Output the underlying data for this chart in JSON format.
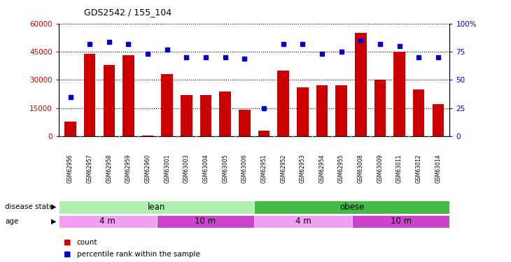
{
  "title": "GDS2542 / 155_104",
  "samples": [
    "GSM62956",
    "GSM62957",
    "GSM62958",
    "GSM62959",
    "GSM62960",
    "GSM63001",
    "GSM63003",
    "GSM63004",
    "GSM63005",
    "GSM63006",
    "GSM62951",
    "GSM62952",
    "GSM62953",
    "GSM62954",
    "GSM62955",
    "GSM63008",
    "GSM63009",
    "GSM63011",
    "GSM63012",
    "GSM63014"
  ],
  "counts": [
    8000,
    44000,
    38000,
    43000,
    500,
    33000,
    22000,
    22000,
    24000,
    14000,
    3000,
    35000,
    26000,
    27000,
    27000,
    55000,
    30000,
    45000,
    25000,
    17000
  ],
  "percentile": [
    35,
    82,
    84,
    82,
    73,
    77,
    70,
    70,
    70,
    69,
    25,
    82,
    82,
    73,
    75,
    85,
    82,
    80,
    70,
    70
  ],
  "bar_color": "#cc0000",
  "dot_color": "#0000cc",
  "lean_color": "#b0f0b0",
  "obese_color": "#44bb44",
  "age_light_color": "#f0a0f0",
  "age_dark_color": "#cc44cc",
  "grid_color": "#000000",
  "tick_bg_color": "#d0d0d0"
}
